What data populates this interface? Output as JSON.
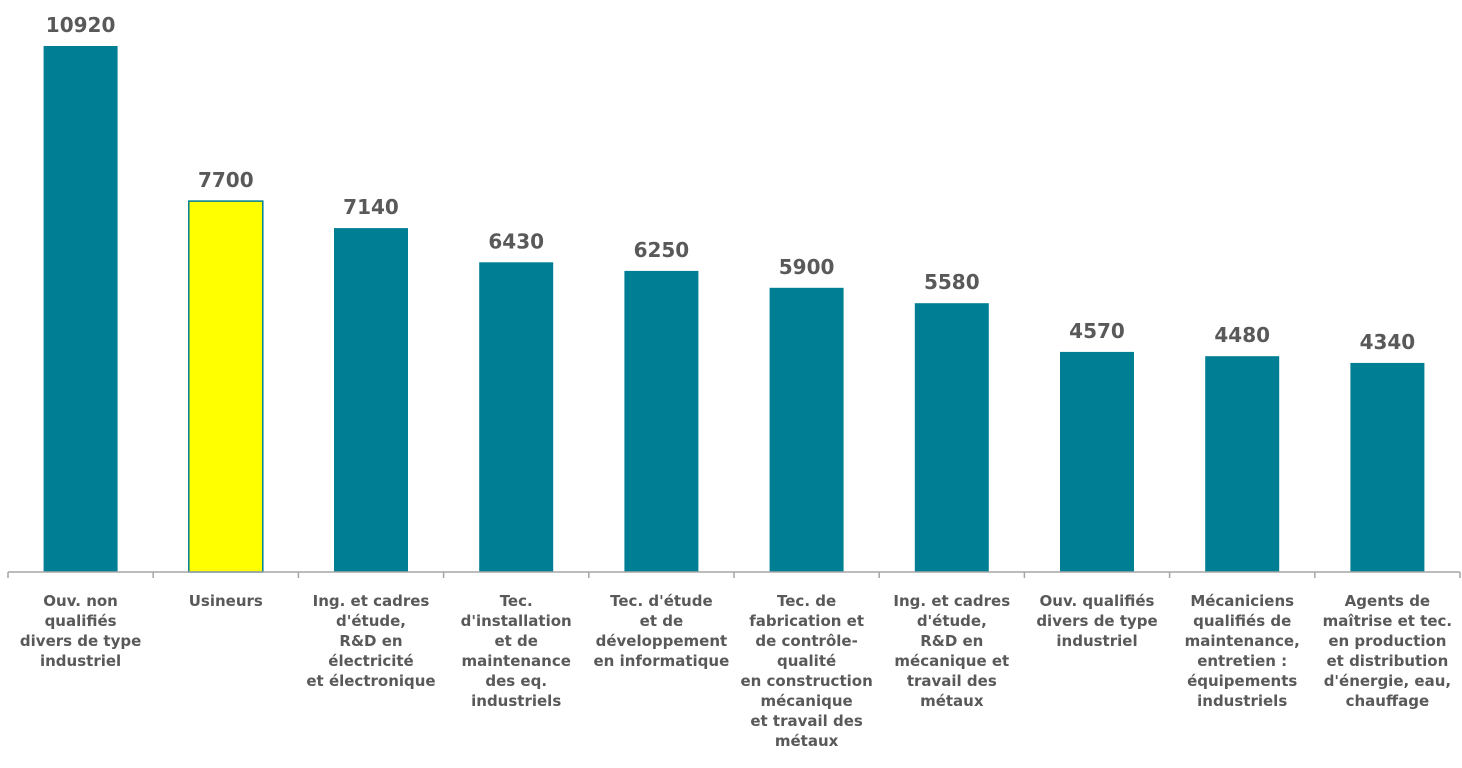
{
  "chart_data": {
    "type": "bar",
    "categories": [
      [
        "Ouv. non",
        "qualifiés",
        "divers de type",
        "industriel"
      ],
      [
        "Usineurs"
      ],
      [
        "Ing. et cadres",
        "d'étude,",
        "R&D en",
        "électricité",
        "et électronique"
      ],
      [
        "Tec.",
        "d'installation",
        "et de",
        "maintenance",
        "des eq.",
        "industriels"
      ],
      [
        "Tec. d'étude",
        "et de",
        "développement",
        "en informatique"
      ],
      [
        "Tec. de",
        "fabrication et",
        "de contrôle-",
        "qualité",
        "en construction",
        "mécanique",
        "et travail des",
        "métaux"
      ],
      [
        "Ing. et cadres",
        "d'étude,",
        "R&D en",
        "mécanique et",
        "travail des",
        "métaux"
      ],
      [
        "Ouv. qualifiés",
        "divers de type",
        "industriel"
      ],
      [
        "Mécaniciens",
        "qualifiés de",
        "maintenance,",
        "entretien :",
        "équipements",
        "industriels"
      ],
      [
        "Agents de",
        "maîtrise et tec.",
        "en production",
        "et distribution",
        "d'énergie, eau,",
        "chauffage"
      ]
    ],
    "values": [
      10920,
      7700,
      7140,
      6430,
      6250,
      5900,
      5580,
      4570,
      4480,
      4340
    ],
    "value_labels": [
      "10920",
      "7700",
      "7140",
      "6430",
      "6250",
      "5900",
      "5580",
      "4570",
      "4480",
      "4340"
    ],
    "highlight_index": 1,
    "ylim": [
      0,
      10920
    ],
    "grid": false,
    "colors": {
      "bar": "#007E93",
      "highlight": "#FFFF00",
      "highlight_border": "#007E93",
      "text": "#595959",
      "axis": "#A6A6A6"
    }
  }
}
